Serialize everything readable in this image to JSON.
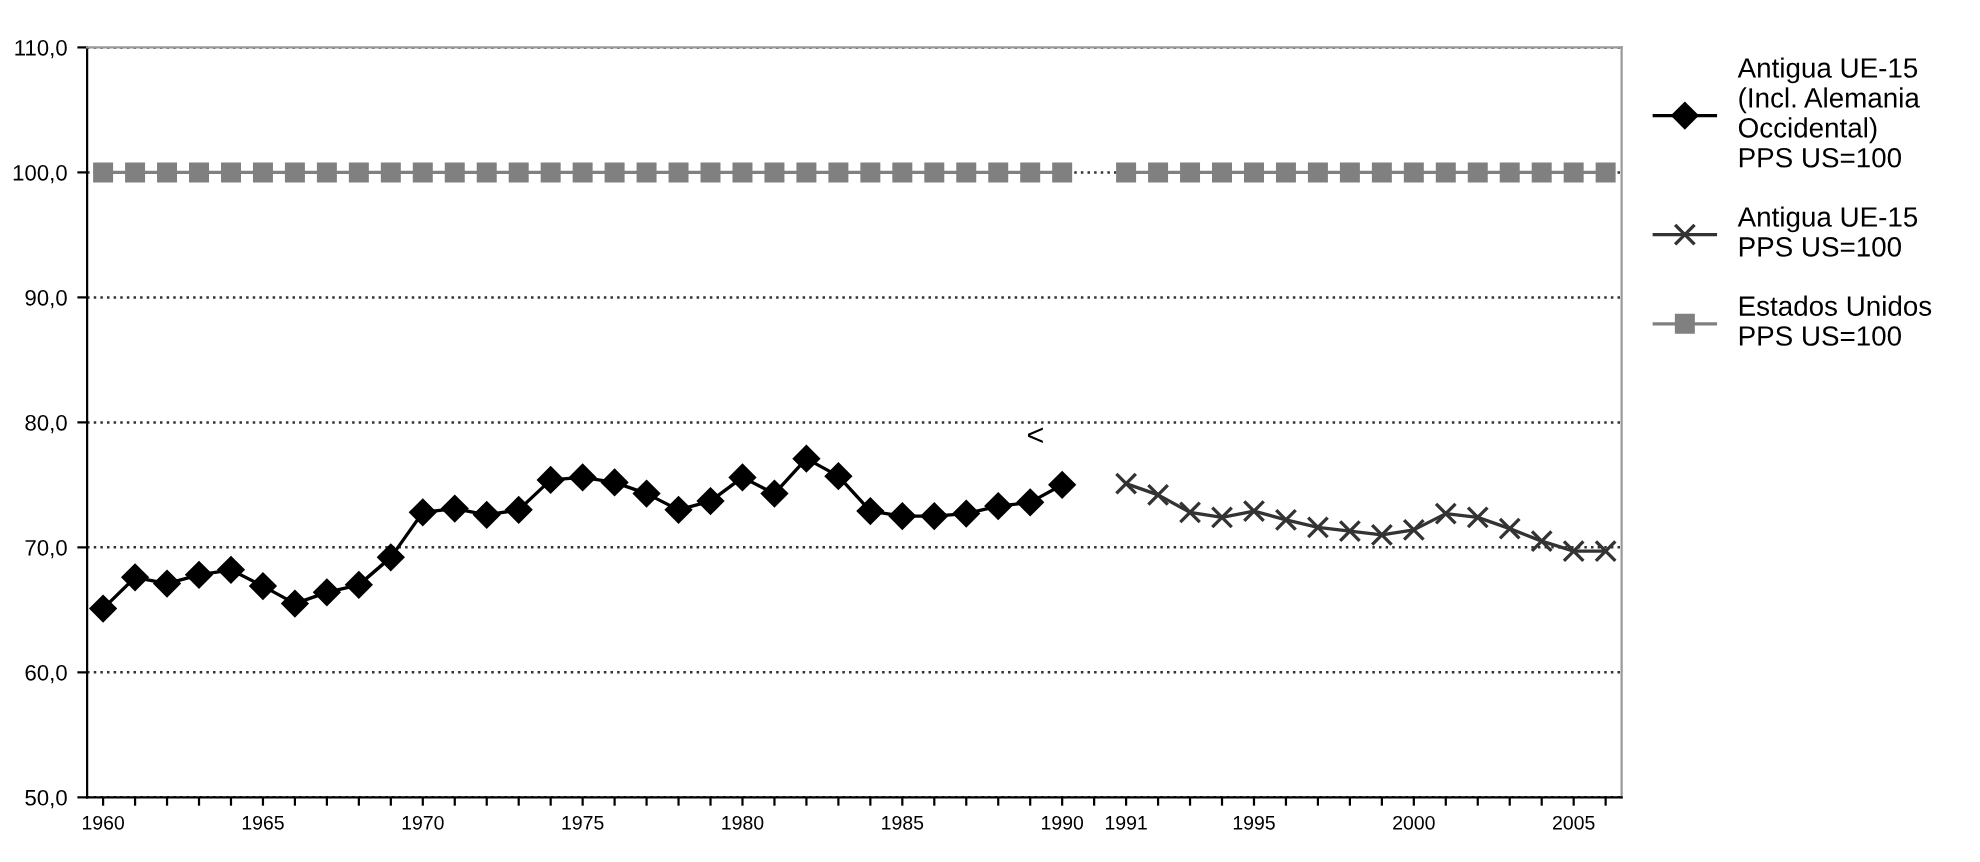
{
  "chart_data": {
    "type": "line",
    "categories": [
      "1960",
      null,
      null,
      null,
      null,
      "1965",
      null,
      null,
      null,
      null,
      "1970",
      null,
      null,
      null,
      null,
      "1975",
      null,
      null,
      null,
      null,
      "1980",
      null,
      null,
      null,
      null,
      "1985",
      null,
      null,
      null,
      null,
      "1990",
      null,
      "1991",
      null,
      null,
      null,
      "1995",
      null,
      null,
      null,
      null,
      "2000",
      null,
      null,
      null,
      null,
      "2005",
      null
    ],
    "series": [
      {
        "name": "Antigua UE-15\n(Incl. Alemania\nOccidental)\nPPS US=100",
        "color": "#000000",
        "marker": "diamond",
        "values": [
          65.1,
          67.6,
          67.1,
          67.8,
          68.2,
          66.9,
          65.5,
          66.4,
          67.0,
          69.2,
          72.8,
          73.1,
          72.6,
          73.0,
          75.4,
          75.6,
          75.2,
          74.3,
          73.0,
          73.7,
          75.6,
          74.3,
          77.1,
          75.7,
          72.9,
          72.5,
          72.5,
          72.7,
          73.3,
          73.6,
          75.0,
          null,
          null,
          null,
          null,
          null,
          null,
          null,
          null,
          null,
          null,
          null,
          null,
          null,
          null,
          null,
          null,
          null
        ]
      },
      {
        "name": "Antigua UE-15\nPPS US=100",
        "color": "#333333",
        "marker": "cross",
        "values": [
          null,
          null,
          null,
          null,
          null,
          null,
          null,
          null,
          null,
          null,
          null,
          null,
          null,
          null,
          null,
          null,
          null,
          null,
          null,
          null,
          null,
          null,
          null,
          null,
          null,
          null,
          null,
          null,
          null,
          null,
          null,
          null,
          75.1,
          74.2,
          72.8,
          72.4,
          72.9,
          72.2,
          71.6,
          71.3,
          71.0,
          71.4,
          72.7,
          72.4,
          71.5,
          70.5,
          69.7,
          69.7
        ]
      },
      {
        "name": "Estados Unidos\nPPS US=100",
        "color": "#808080",
        "marker": "square",
        "values": [
          100,
          100,
          100,
          100,
          100,
          100,
          100,
          100,
          100,
          100,
          100,
          100,
          100,
          100,
          100,
          100,
          100,
          100,
          100,
          100,
          100,
          100,
          100,
          100,
          100,
          100,
          100,
          100,
          100,
          100,
          100,
          null,
          100,
          100,
          100,
          100,
          100,
          100,
          100,
          100,
          100,
          100,
          100,
          100,
          100,
          100,
          100,
          100
        ]
      }
    ],
    "ylim": [
      50,
      110
    ],
    "yticks": [
      {
        "value": 50,
        "label": "50,0"
      },
      {
        "value": 60,
        "label": "60,0"
      },
      {
        "value": 70,
        "label": "70,0"
      },
      {
        "value": 80,
        "label": "80,0"
      },
      {
        "value": 90,
        "label": "90,0"
      },
      {
        "value": 100,
        "label": "100,0"
      },
      {
        "value": 110,
        "label": "110,0"
      }
    ],
    "grid": "y",
    "legend": "right",
    "line_style": "solid",
    "annotations": [
      "<"
    ]
  }
}
